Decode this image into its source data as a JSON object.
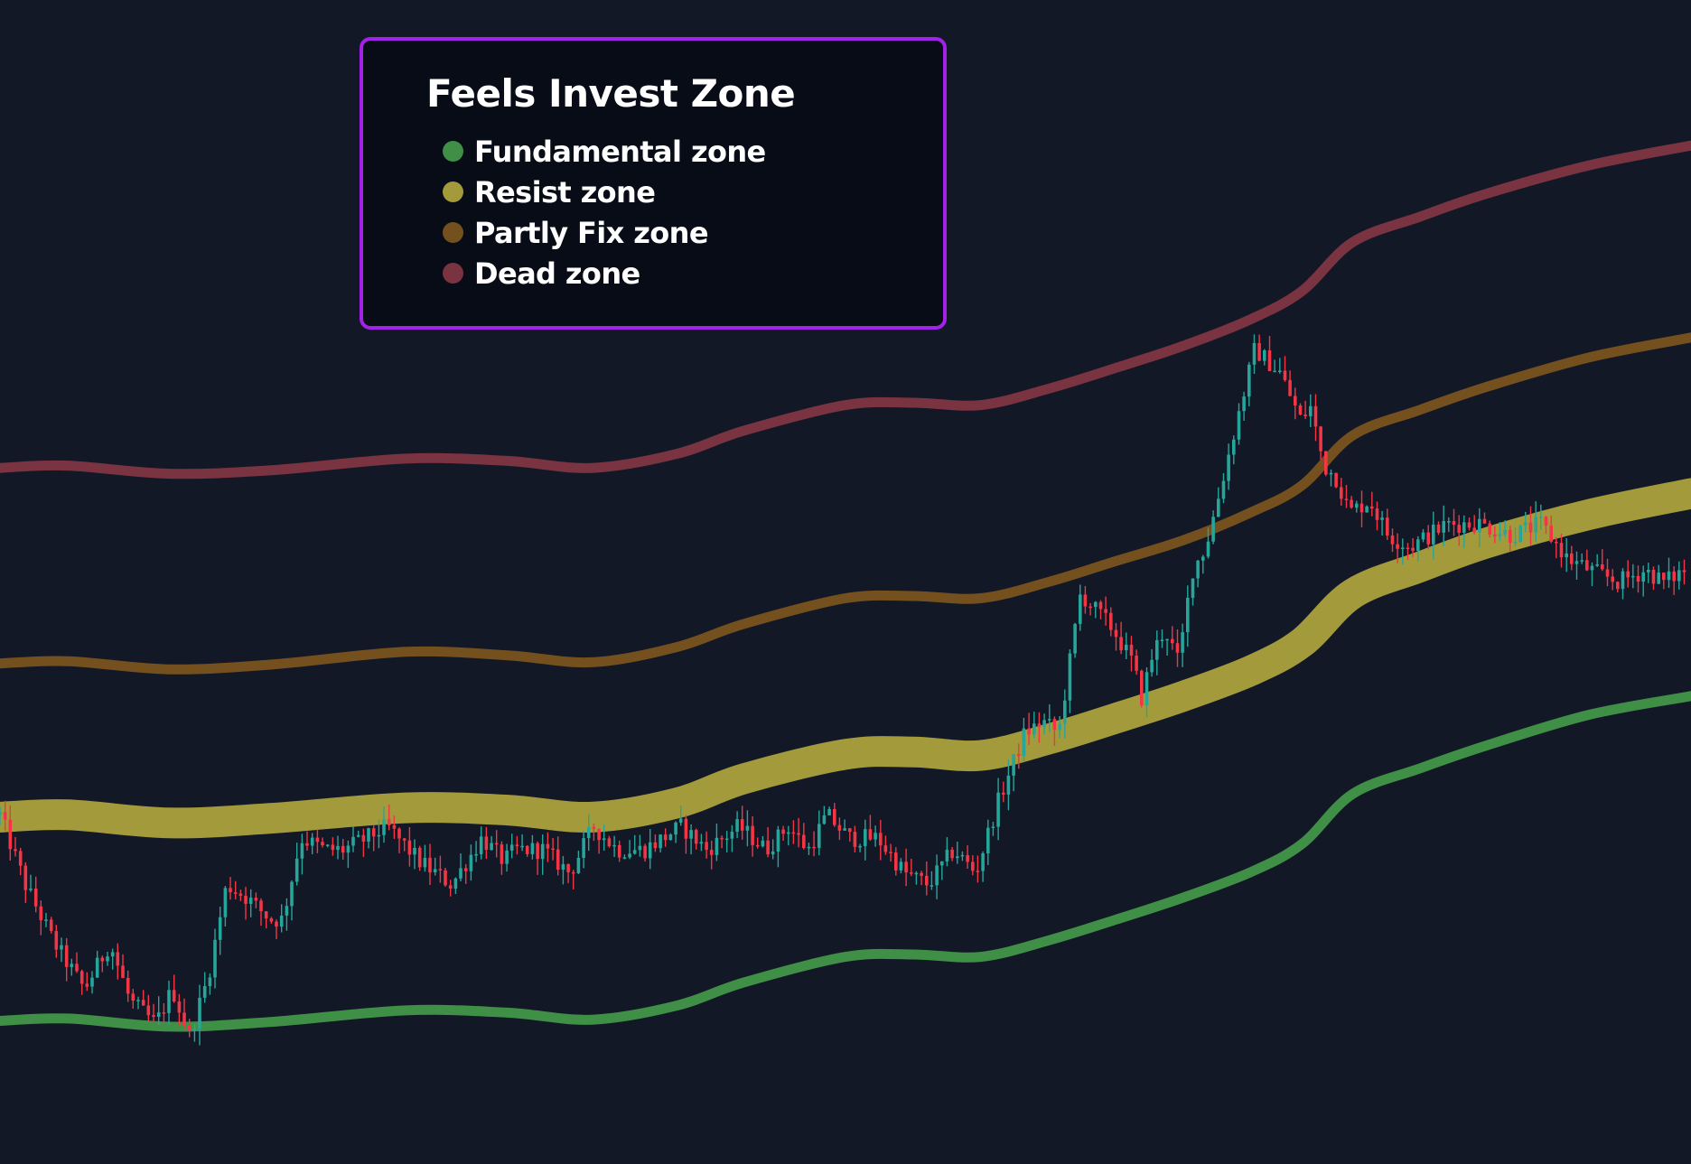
{
  "chart_data": {
    "type": "line",
    "title": "",
    "xlabel": "",
    "ylabel": "",
    "grid": false,
    "legend_placement": "top-left",
    "legend": {
      "title": "Feels Invest Zone",
      "items": [
        {
          "label": "Fundamental zone",
          "color": "#3f8f46"
        },
        {
          "label": "Resist zone",
          "color": "#a29a3b"
        },
        {
          "label": "Partly Fix zone",
          "color": "#74501f"
        },
        {
          "label": "Dead zone",
          "color": "#7a3340"
        }
      ]
    },
    "x_range": [
      0,
      100
    ],
    "y_range": [
      0,
      100
    ],
    "zones": [
      {
        "name": "Dead zone",
        "color": "#7a3340",
        "band": "thin",
        "x": [
          0,
          4,
          10,
          16,
          24,
          30,
          35,
          40,
          44,
          50,
          54,
          58,
          62,
          66,
          70,
          74,
          77,
          80,
          84,
          88,
          94,
          100
        ],
        "y": [
          59.8,
          60.0,
          59.3,
          59.6,
          60.6,
          60.4,
          59.8,
          61.0,
          63.0,
          65.2,
          65.4,
          65.2,
          66.6,
          68.4,
          70.3,
          72.6,
          75.0,
          79.2,
          81.4,
          83.4,
          85.8,
          87.5
        ]
      },
      {
        "name": "Partly Fix zone",
        "color": "#74501f",
        "band": "thin",
        "x": [
          0,
          4,
          10,
          16,
          24,
          30,
          35,
          40,
          44,
          50,
          54,
          58,
          62,
          66,
          70,
          74,
          77,
          80,
          84,
          88,
          94,
          100
        ],
        "y": [
          43.0,
          43.2,
          42.5,
          42.9,
          44.0,
          43.7,
          43.1,
          44.4,
          46.4,
          48.6,
          48.8,
          48.6,
          50.0,
          51.8,
          53.6,
          56.0,
          58.3,
          62.6,
          64.8,
          66.8,
          69.3,
          71.0
        ]
      },
      {
        "name": "Resist zone",
        "color": "#a29a3b",
        "band": "thick",
        "x": [
          0,
          4,
          10,
          16,
          24,
          30,
          35,
          40,
          44,
          50,
          54,
          58,
          62,
          66,
          70,
          74,
          77,
          80,
          84,
          88,
          94,
          100
        ],
        "y": [
          29.8,
          30.0,
          29.3,
          29.7,
          30.6,
          30.4,
          29.8,
          31.0,
          33.1,
          35.2,
          35.4,
          35.1,
          36.5,
          38.3,
          40.2,
          42.4,
          44.8,
          49.0,
          51.3,
          53.4,
          55.8,
          57.6
        ]
      },
      {
        "name": "Fundamental zone",
        "color": "#3f8f46",
        "band": "thin",
        "x": [
          0,
          4,
          10,
          16,
          24,
          30,
          35,
          40,
          44,
          50,
          54,
          58,
          62,
          66,
          70,
          74,
          77,
          80,
          84,
          88,
          94,
          100
        ],
        "y": [
          12.3,
          12.5,
          11.8,
          12.2,
          13.2,
          13.0,
          12.4,
          13.6,
          15.6,
          17.8,
          18.0,
          17.8,
          19.2,
          21.0,
          22.9,
          25.1,
          27.5,
          31.8,
          34.0,
          36.0,
          38.6,
          40.2
        ]
      }
    ],
    "price_path": {
      "up_color": "#26a69a",
      "down_color": "#f23645",
      "candle_count": 330,
      "x": [
        0,
        1.5,
        3.2,
        5.0,
        6.5,
        7.7,
        9.2,
        10.2,
        11.2,
        12.3,
        13.4,
        14.5,
        16.0,
        16.7,
        17.8,
        19.2,
        20.3,
        21.7,
        22.9,
        24.8,
        26.7,
        28.5,
        29.8,
        30.5,
        32.1,
        33.7,
        35.1,
        36.5,
        38.1,
        40.3,
        41.8,
        43.7,
        45.3,
        46.6,
        47.8,
        48.9,
        50.2,
        51.9,
        53.5,
        54.9,
        56.4,
        57.7,
        59.0,
        60.6,
        61.7,
        62.6,
        63.9,
        65.8,
        67.0,
        67.5,
        68.2,
        68.9,
        69.7,
        70.5,
        71.3,
        72.0,
        73.0,
        74.2,
        75.7,
        76.9,
        77.5,
        78.3,
        79.0,
        79.8,
        81.0,
        82.1,
        83.4,
        85.6,
        87.5,
        89.4,
        91.1,
        92.7,
        94.1,
        95.7,
        97.3,
        98.4,
        99.6
      ],
      "y": [
        30,
        24,
        19,
        15,
        19,
        14,
        12,
        15,
        11,
        16,
        24,
        23,
        21,
        21,
        28,
        27,
        27,
        28,
        29,
        26,
        24,
        28,
        26,
        27,
        27,
        25,
        29,
        27,
        27,
        29,
        27,
        29,
        27,
        29,
        27,
        30,
        28,
        28,
        25,
        24,
        27,
        25,
        31,
        37,
        38,
        37,
        49,
        46,
        43,
        40,
        44,
        46,
        43,
        51,
        53,
        57,
        63,
        70,
        68,
        64,
        65,
        60,
        59,
        56,
        57,
        54,
        53,
        55,
        55,
        54,
        55,
        52,
        51,
        50,
        51,
        50,
        51
      ]
    }
  }
}
